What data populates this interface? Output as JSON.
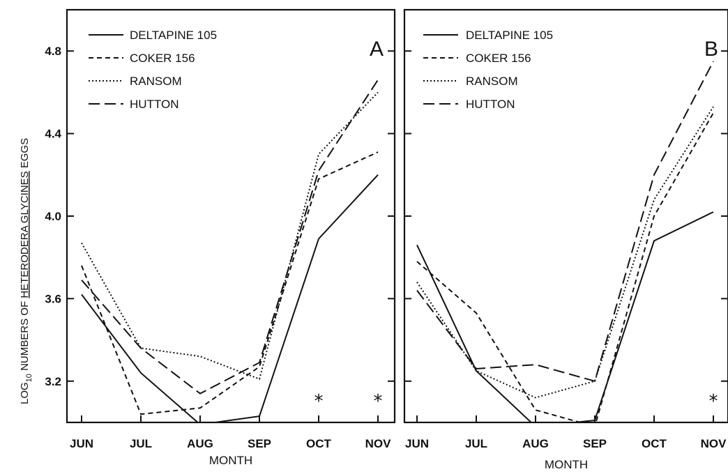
{
  "chart_data": [
    {
      "panel_label": "A",
      "type": "line",
      "categories": [
        "JUN",
        "JUL",
        "AUG",
        "SEP",
        "OCT",
        "NOV"
      ],
      "xlabel": "MONTH",
      "ylabel_parts": [
        "LOG",
        "10",
        " NUMBERS OF ",
        "HETERODERA GLYCINES",
        " EGGS"
      ],
      "yticks": [
        "3.2",
        "3.6",
        "4.0",
        "4.4",
        "4.8"
      ],
      "ylim": [
        3.0,
        5.0
      ],
      "significance": [
        "",
        "",
        "",
        "",
        "*",
        "*"
      ],
      "series": [
        {
          "name": "DELTAPINE 105",
          "style": "solid",
          "values": [
            3.62,
            3.24,
            2.99,
            3.03,
            3.89,
            4.2
          ]
        },
        {
          "name": "COKER 156",
          "style": "short-dash",
          "values": [
            3.76,
            3.04,
            3.07,
            3.27,
            4.18,
            4.31
          ]
        },
        {
          "name": "RANSOM",
          "style": "dotted",
          "values": [
            3.87,
            3.36,
            3.32,
            3.21,
            4.3,
            4.6
          ]
        },
        {
          "name": "HUTTON",
          "style": "long-dash",
          "values": [
            3.69,
            3.36,
            3.14,
            3.29,
            4.22,
            4.66
          ]
        }
      ],
      "legend_position": "top-left",
      "grid": false
    },
    {
      "panel_label": "B",
      "type": "line",
      "categories": [
        "JUN",
        "JUL",
        "AUG",
        "SEP",
        "OCT",
        "NOV"
      ],
      "xlabel": "MONTH",
      "ylim": [
        3.0,
        5.0
      ],
      "significance": [
        "",
        "",
        "",
        "",
        "",
        "*"
      ],
      "series": [
        {
          "name": "DELTAPINE 105",
          "style": "solid",
          "values": [
            3.86,
            3.25,
            2.98,
            3.01,
            3.88,
            4.02
          ]
        },
        {
          "name": "COKER 156",
          "style": "short-dash",
          "values": [
            3.78,
            3.53,
            3.06,
            2.98,
            4.0,
            4.5
          ]
        },
        {
          "name": "RANSOM",
          "style": "dotted",
          "values": [
            3.68,
            3.25,
            3.12,
            3.2,
            4.08,
            4.53
          ]
        },
        {
          "name": "HUTTON",
          "style": "long-dash",
          "values": [
            3.64,
            3.26,
            3.28,
            3.2,
            4.2,
            4.75
          ]
        }
      ],
      "legend_position": "top-left",
      "grid": false
    }
  ]
}
